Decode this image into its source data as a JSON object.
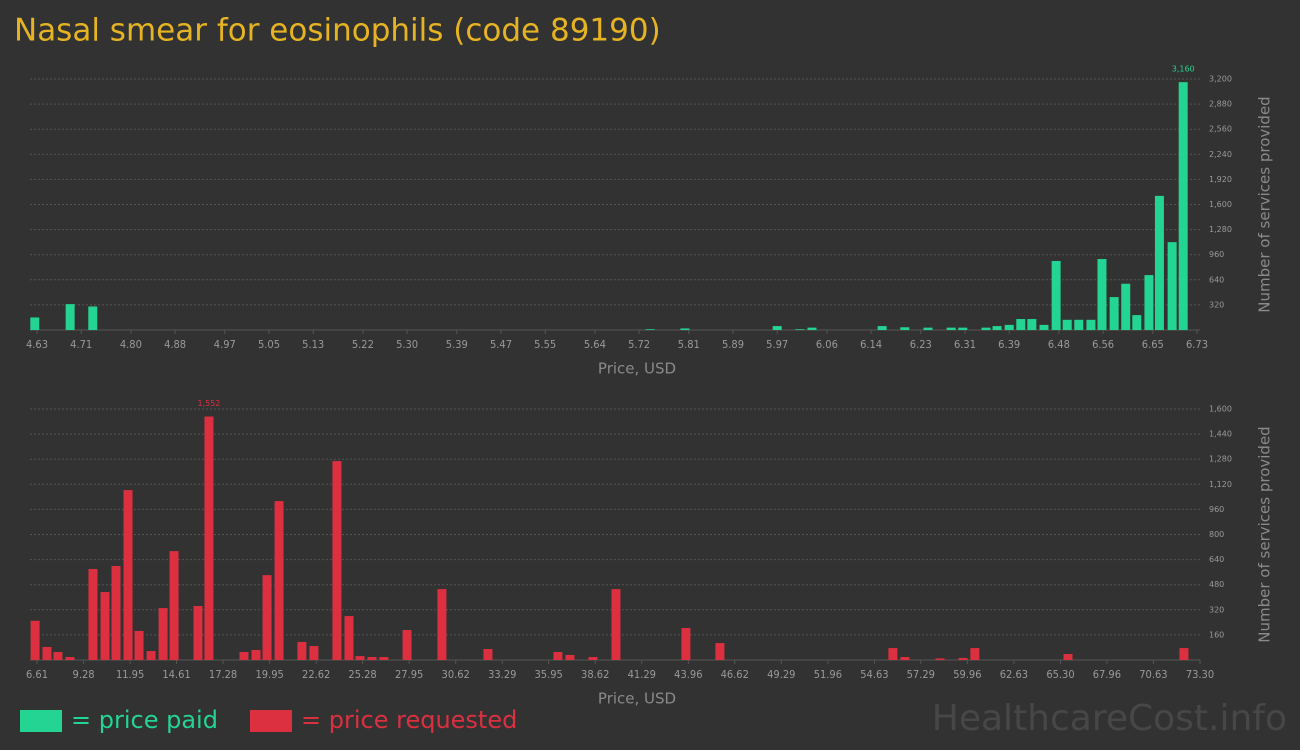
{
  "title": "Nasal smear for eosinophils (code 89190)",
  "chart_data": [
    {
      "type": "bar",
      "x": [
        4.626,
        4.69,
        4.731,
        5.74,
        5.803,
        5.97,
        6.011,
        6.033,
        6.16,
        6.201,
        6.243,
        6.285,
        6.306,
        6.348,
        6.368,
        6.39,
        6.411,
        6.431,
        6.453,
        6.475,
        6.495,
        6.516,
        6.538,
        6.558,
        6.58,
        6.601,
        6.621,
        6.643,
        6.662,
        6.685,
        6.705
      ],
      "values": [
        160,
        330,
        300,
        10,
        20,
        50,
        10,
        30,
        50,
        35,
        30,
        30,
        30,
        30,
        50,
        65,
        140,
        140,
        65,
        880,
        130,
        130,
        130,
        905,
        420,
        590,
        190,
        700,
        1710,
        1120,
        3160
      ],
      "value_labels": [
        null,
        null,
        null,
        null,
        null,
        null,
        null,
        null,
        null,
        null,
        null,
        null,
        null,
        null,
        null,
        null,
        null,
        null,
        null,
        null,
        null,
        null,
        null,
        null,
        null,
        null,
        null,
        null,
        null,
        null,
        "3,160"
      ],
      "color": "#23d492",
      "xlim": [
        4.63,
        6.73
      ],
      "xticks": [
        4.63,
        4.71,
        {
          "value": 4.8,
          "label": "4.80"
        },
        4.88,
        4.97,
        5.05,
        5.13,
        5.22,
        {
          "value": 5.3,
          "label": "5.30"
        },
        5.39,
        5.47,
        5.55,
        5.64,
        5.72,
        5.81,
        5.89,
        5.97,
        6.06,
        6.14,
        6.23,
        6.31,
        6.39,
        6.48,
        6.56,
        6.65,
        6.73
      ],
      "ylim": [
        0,
        3200
      ],
      "yticks": [
        320,
        640,
        960,
        {
          "value": 1280,
          "label": "1,280"
        },
        {
          "value": 1600,
          "label": "1,600"
        },
        {
          "value": 1920,
          "label": "1,920"
        },
        {
          "value": 2240,
          "label": "2,240"
        },
        {
          "value": 2560,
          "label": "2,560"
        },
        {
          "value": 2880,
          "label": "2,880"
        },
        {
          "value": 3200,
          "label": "3,200"
        }
      ],
      "x_label": "Price, USD",
      "y_label": "Number of services provided",
      "grid": true
    },
    {
      "type": "bar",
      "x": [
        6.5,
        7.18,
        7.81,
        8.5,
        9.82,
        10.51,
        11.14,
        11.83,
        12.46,
        13.15,
        13.84,
        14.47,
        15.84,
        16.47,
        18.48,
        19.17,
        19.8,
        20.49,
        21.8,
        22.49,
        23.81,
        24.5,
        25.13,
        25.82,
        26.5,
        27.83,
        29.83,
        32.47,
        36.48,
        37.17,
        38.49,
        39.81,
        43.82,
        45.77,
        55.69,
        56.38,
        58.39,
        59.71,
        60.39,
        65.73,
        72.38
      ],
      "values": [
        250,
        83,
        51,
        19,
        580,
        433,
        599,
        1083,
        185,
        57,
        331,
        694,
        344,
        1552,
        51,
        64,
        541,
        1013,
        115,
        89,
        1268,
        280,
        25,
        19,
        19,
        191,
        452,
        70,
        51,
        32,
        19,
        452,
        204,
        108,
        76,
        19,
        10,
        13,
        76,
        38,
        76
      ],
      "value_labels": [
        null,
        null,
        null,
        null,
        null,
        null,
        null,
        null,
        null,
        null,
        null,
        null,
        null,
        "1,552",
        null,
        null,
        null,
        null,
        null,
        null,
        null,
        null,
        null,
        null,
        null,
        null,
        null,
        null,
        null,
        null,
        null,
        null,
        null,
        null,
        null,
        null,
        null,
        null,
        null,
        null,
        null
      ],
      "color": "#dc3040",
      "xlim": [
        6.61,
        73.3
      ],
      "xticks": [
        6.61,
        9.28,
        11.95,
        14.61,
        17.28,
        19.95,
        22.62,
        25.28,
        27.95,
        30.62,
        33.29,
        35.95,
        38.62,
        41.29,
        43.96,
        46.62,
        49.29,
        51.96,
        54.63,
        57.29,
        59.96,
        62.63,
        {
          "value": 65.3,
          "label": "65.30"
        },
        67.96,
        70.63,
        {
          "value": 73.3,
          "label": "73.30"
        }
      ],
      "ylim": [
        0,
        1600
      ],
      "yticks": [
        160,
        320,
        480,
        640,
        800,
        960,
        {
          "value": 1120,
          "label": "1,120"
        },
        {
          "value": 1280,
          "label": "1,280"
        },
        {
          "value": 1440,
          "label": "1,440"
        },
        {
          "value": 1600,
          "label": "1,600"
        }
      ],
      "x_label": "Price, USD",
      "y_label": "Number of services provided",
      "grid": true
    }
  ],
  "legend": [
    {
      "label": "= price paid",
      "color": "#23d492"
    },
    {
      "label": "= price requested",
      "color": "#dc3040"
    }
  ],
  "watermark": "HealthcareCost.info"
}
